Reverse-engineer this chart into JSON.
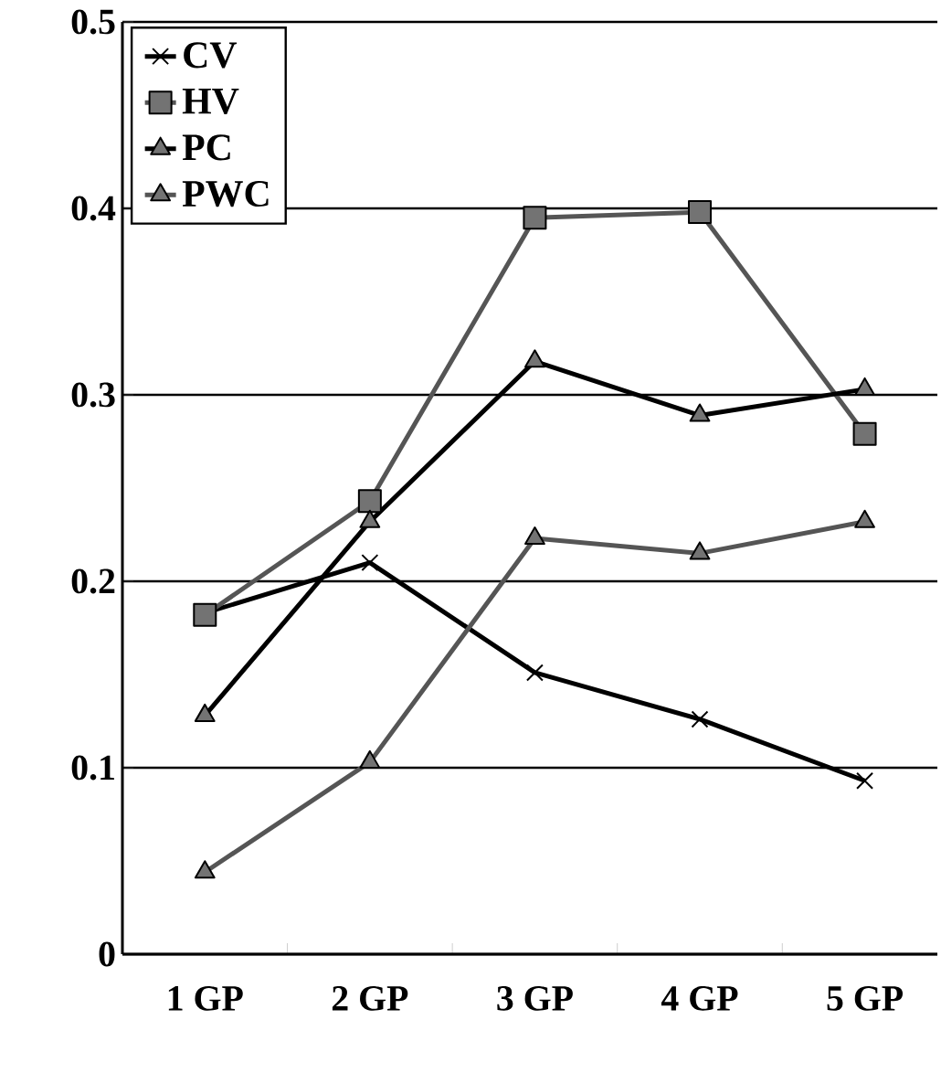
{
  "chart_data": {
    "type": "line",
    "categories": [
      "1 GP",
      "2 GP",
      "3 GP",
      "4 GP",
      "5 GP"
    ],
    "series": [
      {
        "name": "CV",
        "color": "#000000",
        "marker": "cross",
        "values": [
          0.183,
          0.21,
          0.151,
          0.126,
          0.093
        ]
      },
      {
        "name": "HV",
        "color": "#555555",
        "marker": "square",
        "values": [
          0.182,
          0.243,
          0.395,
          0.398,
          0.279
        ]
      },
      {
        "name": "PC",
        "color": "#000000",
        "marker": "triangle",
        "values": [
          0.128,
          0.232,
          0.318,
          0.289,
          0.303
        ]
      },
      {
        "name": "PWC",
        "color": "#555555",
        "marker": "triangle",
        "values": [
          0.044,
          0.103,
          0.223,
          0.215,
          0.232
        ]
      }
    ],
    "ylim": [
      0,
      0.5
    ],
    "yticks": [
      0,
      0.1,
      0.2,
      0.3,
      0.4,
      0.5
    ],
    "grid": "y",
    "legend": "top left",
    "line_style": "solid"
  }
}
